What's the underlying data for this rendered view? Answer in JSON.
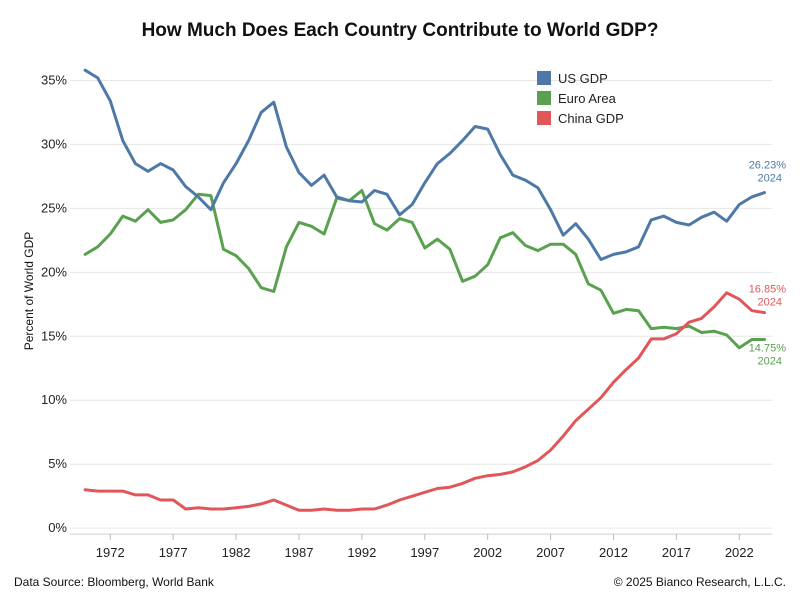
{
  "chart_data": {
    "type": "line",
    "title": "How Much Does Each Country Contribute to World GDP?",
    "xlabel": "",
    "ylabel": "Percent of World GDP",
    "xlim": [
      1970,
      2024
    ],
    "ylim": [
      0,
      36
    ],
    "x_ticks": [
      1972,
      1977,
      1982,
      1987,
      1992,
      1997,
      2002,
      2007,
      2012,
      2017,
      2022
    ],
    "y_ticks": [
      0,
      5,
      10,
      15,
      20,
      25,
      30,
      35
    ],
    "y_tick_labels": [
      "0%",
      "5%",
      "10%",
      "15%",
      "20%",
      "25%",
      "30%",
      "35%"
    ],
    "legend_position": "top-right",
    "x": [
      1970,
      1971,
      1972,
      1973,
      1974,
      1975,
      1976,
      1977,
      1978,
      1979,
      1980,
      1981,
      1982,
      1983,
      1984,
      1985,
      1986,
      1987,
      1988,
      1989,
      1990,
      1991,
      1992,
      1993,
      1994,
      1995,
      1996,
      1997,
      1998,
      1999,
      2000,
      2001,
      2002,
      2003,
      2004,
      2005,
      2006,
      2007,
      2008,
      2009,
      2010,
      2011,
      2012,
      2013,
      2014,
      2015,
      2016,
      2017,
      2018,
      2019,
      2020,
      2021,
      2022,
      2023,
      2024
    ],
    "series": [
      {
        "name": "US GDP",
        "color": "#4e79a7",
        "values": [
          35.8,
          35.2,
          33.4,
          30.3,
          28.5,
          27.9,
          28.5,
          28.0,
          26.7,
          25.9,
          24.9,
          27.0,
          28.5,
          30.3,
          32.5,
          33.3,
          29.8,
          27.8,
          26.8,
          27.6,
          25.9,
          25.6,
          25.5,
          26.4,
          26.1,
          24.5,
          25.3,
          27.0,
          28.5,
          29.3,
          30.3,
          31.4,
          31.2,
          29.2,
          27.6,
          27.2,
          26.6,
          24.9,
          22.9,
          23.8,
          22.6,
          21.0,
          21.4,
          21.6,
          22.0,
          24.1,
          24.4,
          23.9,
          23.7,
          24.3,
          24.7,
          24.0,
          25.3,
          25.9,
          26.23
        ],
        "end_label_value": "26.23%",
        "end_label_year": "2024"
      },
      {
        "name": "Euro Area",
        "color": "#59a14f",
        "values": [
          21.4,
          22.0,
          23.0,
          24.4,
          24.0,
          24.9,
          23.9,
          24.1,
          24.9,
          26.1,
          26.0,
          21.8,
          21.3,
          20.3,
          18.8,
          18.5,
          22.0,
          23.9,
          23.6,
          23.0,
          25.8,
          25.6,
          26.4,
          23.8,
          23.3,
          24.2,
          23.9,
          21.9,
          22.6,
          21.8,
          19.3,
          19.7,
          20.6,
          22.7,
          23.1,
          22.1,
          21.7,
          22.2,
          22.2,
          21.4,
          19.1,
          18.6,
          16.8,
          17.1,
          17.0,
          15.6,
          15.7,
          15.6,
          15.8,
          15.3,
          15.4,
          15.1,
          14.1,
          14.75,
          14.75
        ],
        "end_label_value": "14.75%",
        "end_label_year": "2024"
      },
      {
        "name": "China GDP",
        "color": "#e15759",
        "values": [
          3.0,
          2.9,
          2.9,
          2.9,
          2.6,
          2.6,
          2.2,
          2.2,
          1.5,
          1.6,
          1.5,
          1.5,
          1.6,
          1.7,
          1.9,
          2.2,
          1.8,
          1.4,
          1.4,
          1.5,
          1.4,
          1.4,
          1.5,
          1.5,
          1.8,
          2.2,
          2.5,
          2.8,
          3.1,
          3.2,
          3.5,
          3.9,
          4.1,
          4.2,
          4.4,
          4.8,
          5.3,
          6.1,
          7.2,
          8.4,
          9.3,
          10.2,
          11.4,
          12.4,
          13.3,
          14.8,
          14.8,
          15.2,
          16.1,
          16.4,
          17.3,
          18.4,
          17.9,
          17.0,
          16.85
        ],
        "end_label_value": "16.85%",
        "end_label_year": "2024"
      }
    ]
  },
  "footer": {
    "source": "Data Source: Bloomberg, World Bank",
    "copyright": "© 2025 Bianco Research, L.L.C."
  }
}
